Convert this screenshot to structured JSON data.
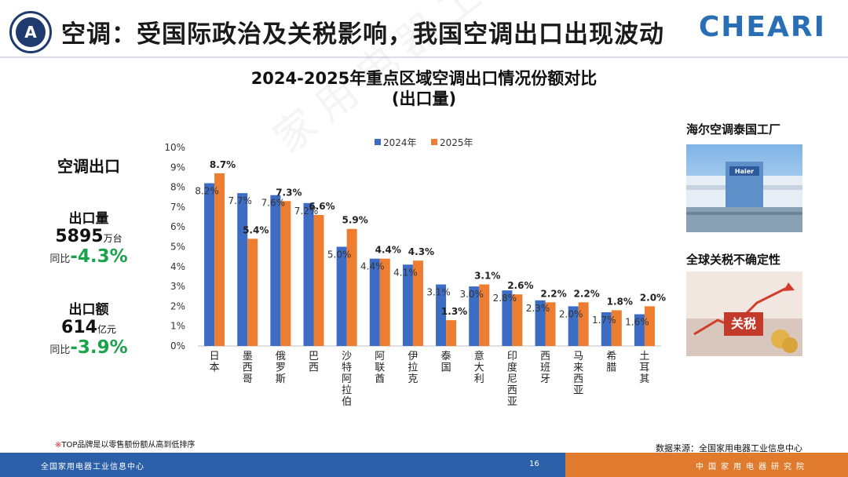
{
  "header": {
    "logo_text": "A",
    "title": "空调：受国际政治及关税影响，我国空调出口出现波动",
    "brand": "CHEARI"
  },
  "chart_heading": {
    "line1": "2024-2025年重点区域空调出口情况份额对比",
    "line2": "(出口量)"
  },
  "side_stats": {
    "section_title": "空调出口",
    "volume": {
      "label": "出口量",
      "value": "5895",
      "unit": "万台",
      "yoy_label": "同比",
      "yoy_value": "-4.3%"
    },
    "amount": {
      "label": "出口额",
      "value": "614",
      "unit": "亿元",
      "yoy_label": "同比",
      "yoy_value": "-3.9%"
    }
  },
  "right_panel": {
    "photo1_caption": "海尔空调泰国工厂",
    "photo1_sign": "Haier",
    "photo2_caption": "全球关税不确定性",
    "photo2_sign": "关税"
  },
  "watermark": "家用电器工业信息中心",
  "footnote": {
    "star": "※",
    "text": "TOP品牌是以零售额份额从高到低排序"
  },
  "source": "数据来源：全国家用电器工业信息中心",
  "footer": {
    "left": "全国家用电器工业信息中心",
    "page": "16",
    "right": "中国家用电器研究院"
  },
  "chart_data": {
    "type": "bar",
    "title": "2024-2025年重点区域空调出口情况份额对比 (出口量)",
    "categories": [
      "日本",
      "墨西哥",
      "俄罗斯",
      "巴西",
      "沙特阿拉伯",
      "阿联酋",
      "伊拉克",
      "泰国",
      "意大利",
      "印度尼西亚",
      "西班牙",
      "马来西亚",
      "希腊",
      "土耳其"
    ],
    "series": [
      {
        "name": "2024年",
        "color": "#3d6cc4",
        "values": [
          8.2,
          7.7,
          7.6,
          7.2,
          5.0,
          4.4,
          4.1,
          3.1,
          3.0,
          2.8,
          2.3,
          2.0,
          1.7,
          1.6
        ],
        "labels": [
          "8.2%",
          "7.7%",
          "7.6%",
          "7.2%",
          "5.0%",
          "4.4%",
          "4.1%",
          "3.1%",
          "3.0%",
          "2.8%",
          "2.3%",
          "2.0%",
          "1.7%",
          "1.6%"
        ]
      },
      {
        "name": "2025年",
        "color": "#ed7d31",
        "values": [
          8.7,
          5.4,
          7.3,
          6.6,
          5.9,
          4.4,
          4.3,
          1.3,
          3.1,
          2.6,
          2.2,
          2.2,
          1.8,
          2.0
        ],
        "labels": [
          "8.7%",
          "5.4%",
          "7.3%",
          "6.6%",
          "5.9%",
          "4.4%",
          "4.3%",
          "1.3%",
          "3.1%",
          "2.6%",
          "2.2%",
          "2.2%",
          "1.8%",
          "2.0%"
        ]
      }
    ],
    "ylim": [
      0,
      10
    ],
    "yticks": [
      "0%",
      "1%",
      "2%",
      "3%",
      "4%",
      "5%",
      "6%",
      "7%",
      "8%",
      "9%",
      "10%"
    ],
    "xlabel": "",
    "ylabel": "",
    "legend": "top-center",
    "grid": false
  }
}
